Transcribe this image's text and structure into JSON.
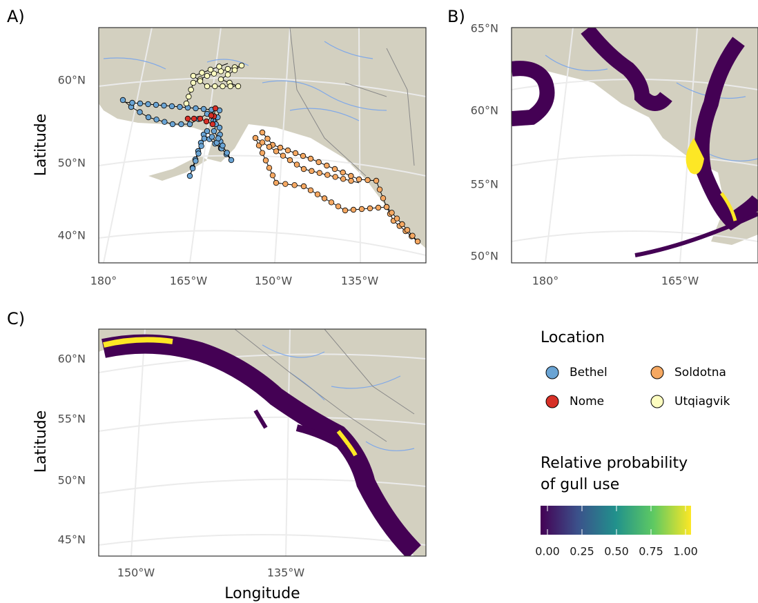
{
  "panels": [
    {
      "label": "A)",
      "y_axis_title": "Latitude",
      "yticks": [
        "60°N",
        "50°N",
        "40°N"
      ],
      "xticks": [
        "180°",
        "165°W",
        "150°W",
        "135°W"
      ]
    },
    {
      "label": "B)",
      "yticks": [
        "65°N",
        "60°N",
        "55°N",
        "50°N"
      ],
      "xticks": [
        "180°",
        "165°W"
      ]
    },
    {
      "label": "C)",
      "y_axis_title": "Latitude",
      "x_axis_title": "Longitude",
      "yticks": [
        "60°N",
        "55°N",
        "50°N",
        "45°N"
      ],
      "xticks": [
        "150°W",
        "135°W"
      ]
    }
  ],
  "legend": {
    "title": "Location",
    "items": [
      {
        "name": "Bethel",
        "color": "#6aa4d4"
      },
      {
        "name": "Soldotna",
        "color": "#f5a862"
      },
      {
        "name": "Nome",
        "color": "#d73027"
      },
      {
        "name": "Utqiagvik",
        "color": "#fdfdc0"
      }
    ]
  },
  "colorbar": {
    "title_lines": [
      "Relative probability",
      "of gull use"
    ],
    "ticks": [
      {
        "value": 0,
        "label": "0.00"
      },
      {
        "value": 0.25,
        "label": "0.25"
      },
      {
        "value": 0.5,
        "label": "0.50"
      },
      {
        "value": 0.75,
        "label": "0.75"
      },
      {
        "value": 1,
        "label": "1.00"
      }
    ]
  }
}
